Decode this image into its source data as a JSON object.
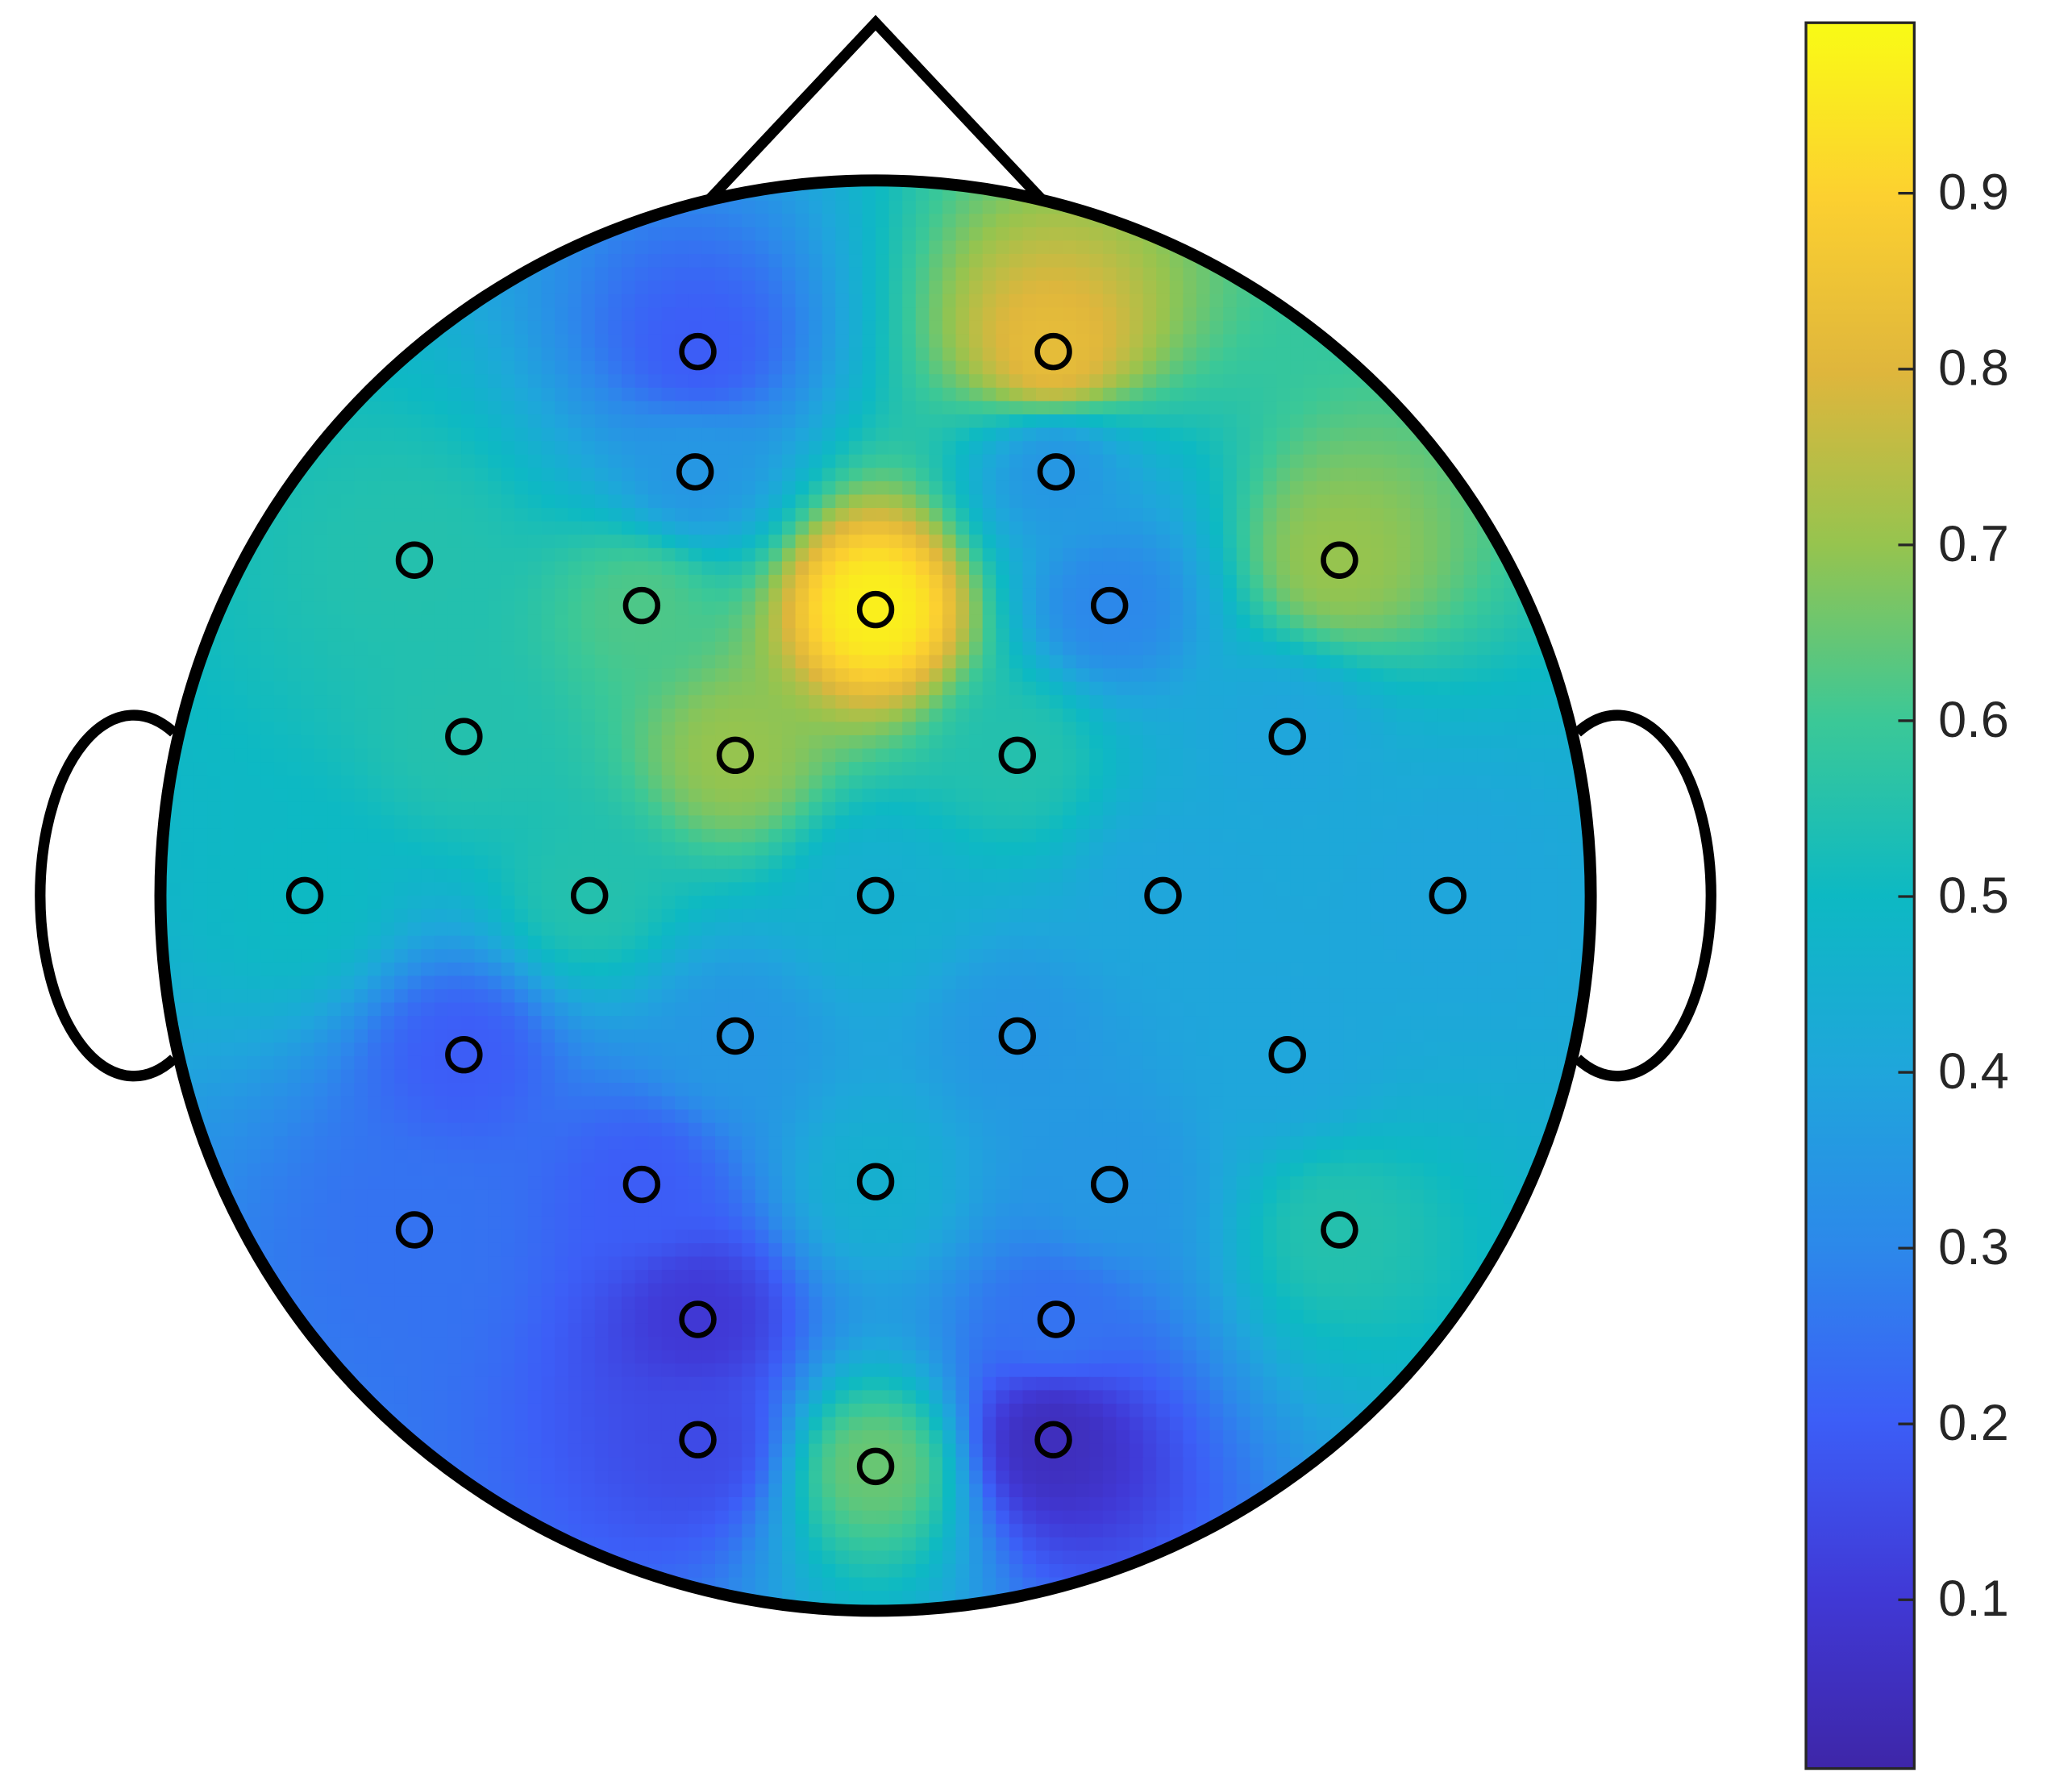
{
  "chart_data": {
    "type": "topoplot",
    "colormap": "parula",
    "values": [
      0.2,
      0.82,
      0.35,
      0.35,
      0.55,
      0.62,
      0.97,
      0.3,
      0.7,
      0.55,
      0.7,
      0.55,
      0.4,
      0.5,
      0.55,
      0.45,
      0.4,
      0.4,
      0.2,
      0.35,
      0.35,
      0.4,
      0.2,
      0.45,
      0.35,
      0.25,
      0.55,
      0.1,
      0.25,
      0.15,
      0.05,
      0.65
    ],
    "clim": [
      0.004,
      0.997
    ],
    "cticks": [
      0.1,
      0.2,
      0.3,
      0.4,
      0.5,
      0.6,
      0.7,
      0.8,
      0.9
    ]
  }
}
